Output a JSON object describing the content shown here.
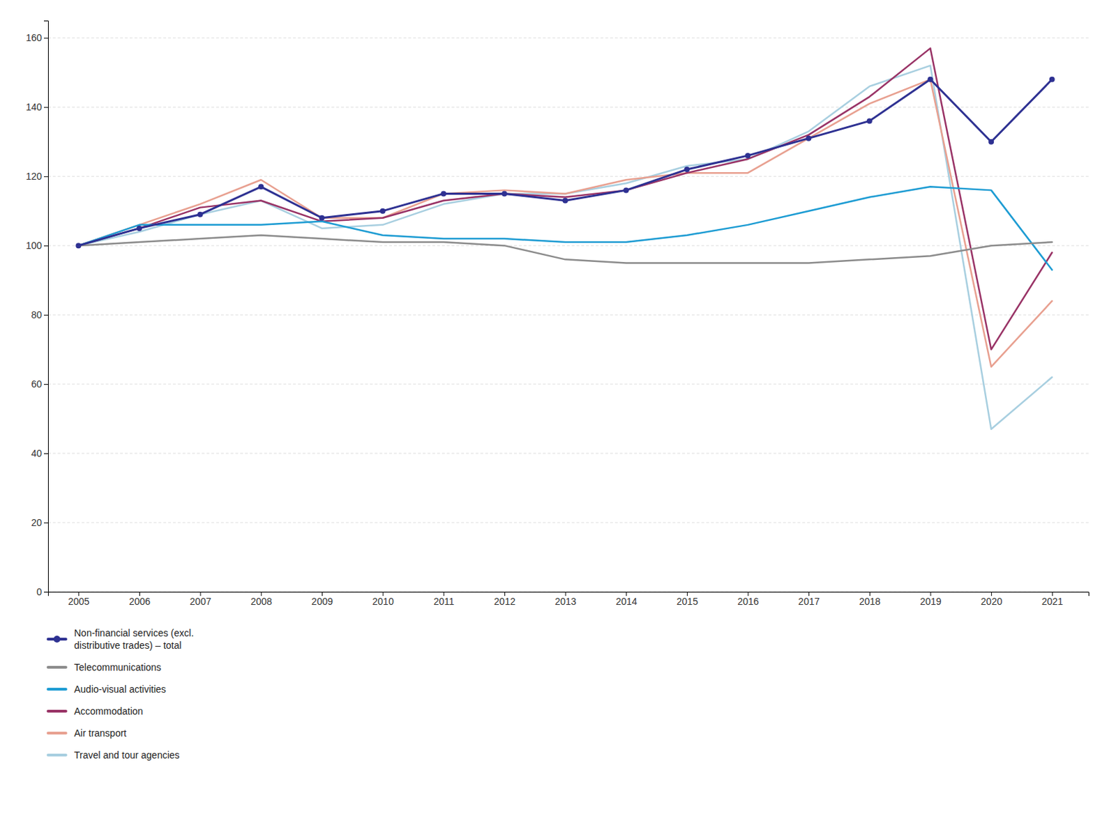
{
  "chart_data": {
    "type": "line",
    "x": [
      2005,
      2006,
      2007,
      2008,
      2009,
      2010,
      2011,
      2012,
      2013,
      2014,
      2015,
      2016,
      2017,
      2018,
      2019,
      2020,
      2021
    ],
    "xlim": [
      2004.5,
      2021.6
    ],
    "xticks": [
      2005,
      2006,
      2007,
      2008,
      2009,
      2010,
      2011,
      2012,
      2013,
      2014,
      2015,
      2016,
      2017,
      2018,
      2019,
      2020,
      2021
    ],
    "ylim": [
      0,
      165
    ],
    "yticks": [
      0,
      20,
      40,
      60,
      80,
      100,
      120,
      140,
      160
    ],
    "grid": true,
    "legend": "bottom",
    "series": [
      {
        "name": "Non-financial services (excl.\ndistributive trades) – total",
        "color": "#2e3192",
        "marker": "circle",
        "values": [
          100,
          105,
          109,
          117,
          108,
          110,
          115,
          115,
          113,
          116,
          122,
          126,
          131,
          136,
          148,
          130,
          148
        ]
      },
      {
        "name": "Telecommunications",
        "color": "#8c8c8c",
        "values": [
          100,
          101,
          102,
          103,
          102,
          101,
          101,
          100,
          96,
          95,
          95,
          95,
          95,
          96,
          97,
          100,
          101
        ]
      },
      {
        "name": "Audio-visual activities",
        "color": "#1d9cd3",
        "values": [
          100,
          106,
          106,
          106,
          107,
          103,
          102,
          102,
          101,
          101,
          103,
          106,
          110,
          114,
          117,
          116,
          93
        ]
      },
      {
        "name": "Accommodation",
        "color": "#993366",
        "values": [
          100,
          105,
          111,
          113,
          107,
          108,
          113,
          115,
          114,
          116,
          121,
          125,
          132,
          143,
          157,
          70,
          98
        ]
      },
      {
        "name": "Air transport",
        "color": "#e8a090",
        "values": [
          100,
          106,
          112,
          119,
          108,
          108,
          115,
          116,
          115,
          119,
          121,
          121,
          131,
          141,
          148,
          65,
          84
        ]
      },
      {
        "name": "Travel and tour agencies",
        "color": "#a8cfe0",
        "values": [
          100,
          104,
          109,
          113,
          105,
          106,
          112,
          115,
          115,
          118,
          123,
          125,
          133,
          146,
          152,
          47,
          62
        ]
      }
    ]
  }
}
